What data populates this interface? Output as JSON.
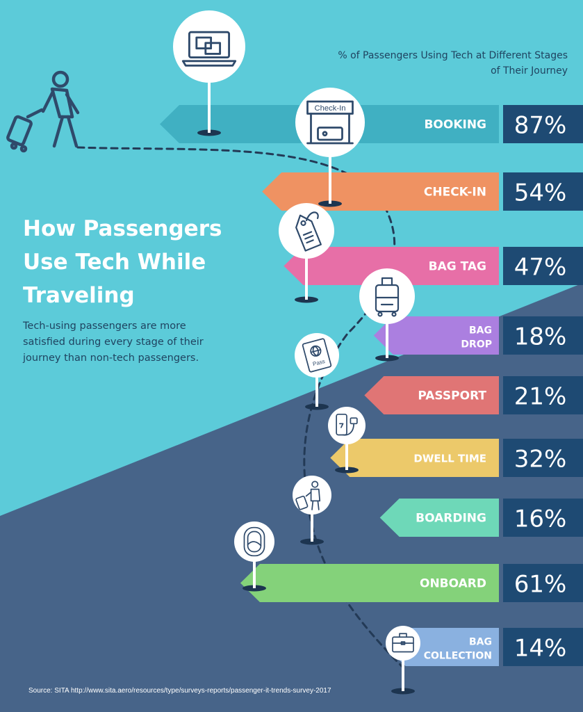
{
  "title": "How Passengers Use Tech While Traveling",
  "subtitle": "Tech-using passengers are more satisfied during every stage of their journey than non-tech passengers.",
  "chart_heading": "% of Passengers Using Tech at Different Stages of Their Journey",
  "source": "Source: SITA http://www.sita.aero/resources/type/surveys-reports/passenger-it-trends-survey-2017",
  "colors": {
    "background_top": "#5ccbd9",
    "background_bottom": "#476489",
    "value_box": "#1e4a73",
    "icon_stroke": "#2f4a6b"
  },
  "icons": [
    "traveler-with-suitcase-icon",
    "laptop-icon",
    "check-in-kiosk-icon",
    "bag-tag-icon",
    "rolling-suitcase-icon",
    "passport-icon",
    "phone-charger-icon",
    "boarding-passenger-icon",
    "airplane-window-icon",
    "briefcase-icon"
  ],
  "chart_data": {
    "type": "bar",
    "unit": "%",
    "categories": [
      "BOOKING",
      "CHECK-IN",
      "BAG TAG",
      "BAG DROP",
      "PASSPORT",
      "DWELL TIME",
      "BOARDING",
      "ONBOARD",
      "BAG COLLECTION"
    ],
    "values": [
      87,
      54,
      47,
      18,
      21,
      32,
      16,
      61,
      14
    ],
    "value_labels": [
      "87%",
      "54%",
      "47%",
      "18%",
      "21%",
      "32%",
      "16%",
      "61%",
      "14%"
    ],
    "colors": [
      "#40b0c2",
      "#ef9262",
      "#e76fa7",
      "#ab7fe0",
      "#e07575",
      "#ecc96a",
      "#6ed8b8",
      "#84d27a",
      "#8ab1e0"
    ],
    "icons": [
      "laptop-icon",
      "check-in-kiosk-icon",
      "bag-tag-icon",
      "rolling-suitcase-icon",
      "passport-icon",
      "phone-charger-icon",
      "boarding-passenger-icon",
      "airplane-window-icon",
      "briefcase-icon"
    ],
    "icon_texts": [
      "",
      "Check-In",
      "",
      "",
      "Pass",
      "",
      "",
      "",
      ""
    ]
  }
}
